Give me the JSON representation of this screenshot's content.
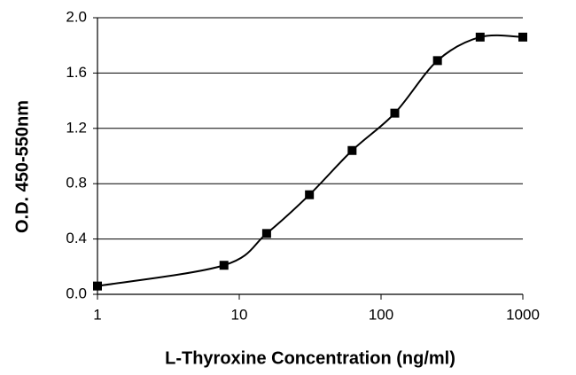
{
  "chart_data": {
    "type": "line",
    "x_label": "L-Thyroxine Concentration (ng/ml)",
    "y_label": "O.D. 450-550nm",
    "x": [
      1,
      7.8,
      15.6,
      31.25,
      62.5,
      125,
      250,
      500,
      1000
    ],
    "series": [
      {
        "color": "#000000",
        "values": [
          0.06,
          0.21,
          0.44,
          0.72,
          1.04,
          1.31,
          1.69,
          1.86,
          1.86
        ]
      }
    ],
    "x_scale": "log",
    "xlim": [
      1,
      1000
    ],
    "xticks": [
      1,
      10,
      100,
      1000
    ],
    "ylim": [
      0,
      2
    ],
    "yticks": [
      {
        "value": 0,
        "label": "0.0"
      },
      0.4,
      0.8,
      1.2,
      1.6,
      {
        "value": 2,
        "label": "2.0"
      }
    ],
    "grid": true
  }
}
